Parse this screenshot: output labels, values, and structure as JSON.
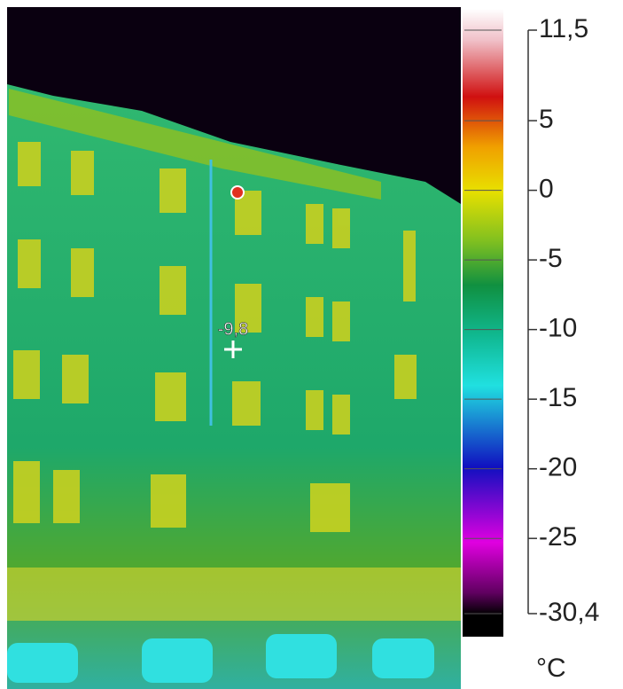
{
  "spot_reading": "-9,8",
  "scale": {
    "max": {
      "value": 11.5,
      "label": "11,5"
    },
    "min": {
      "value": -30.4,
      "label": "-30,4"
    },
    "ticks": [
      5,
      0,
      -5,
      -10,
      -15,
      -20,
      -25
    ],
    "unit": "°C"
  }
}
